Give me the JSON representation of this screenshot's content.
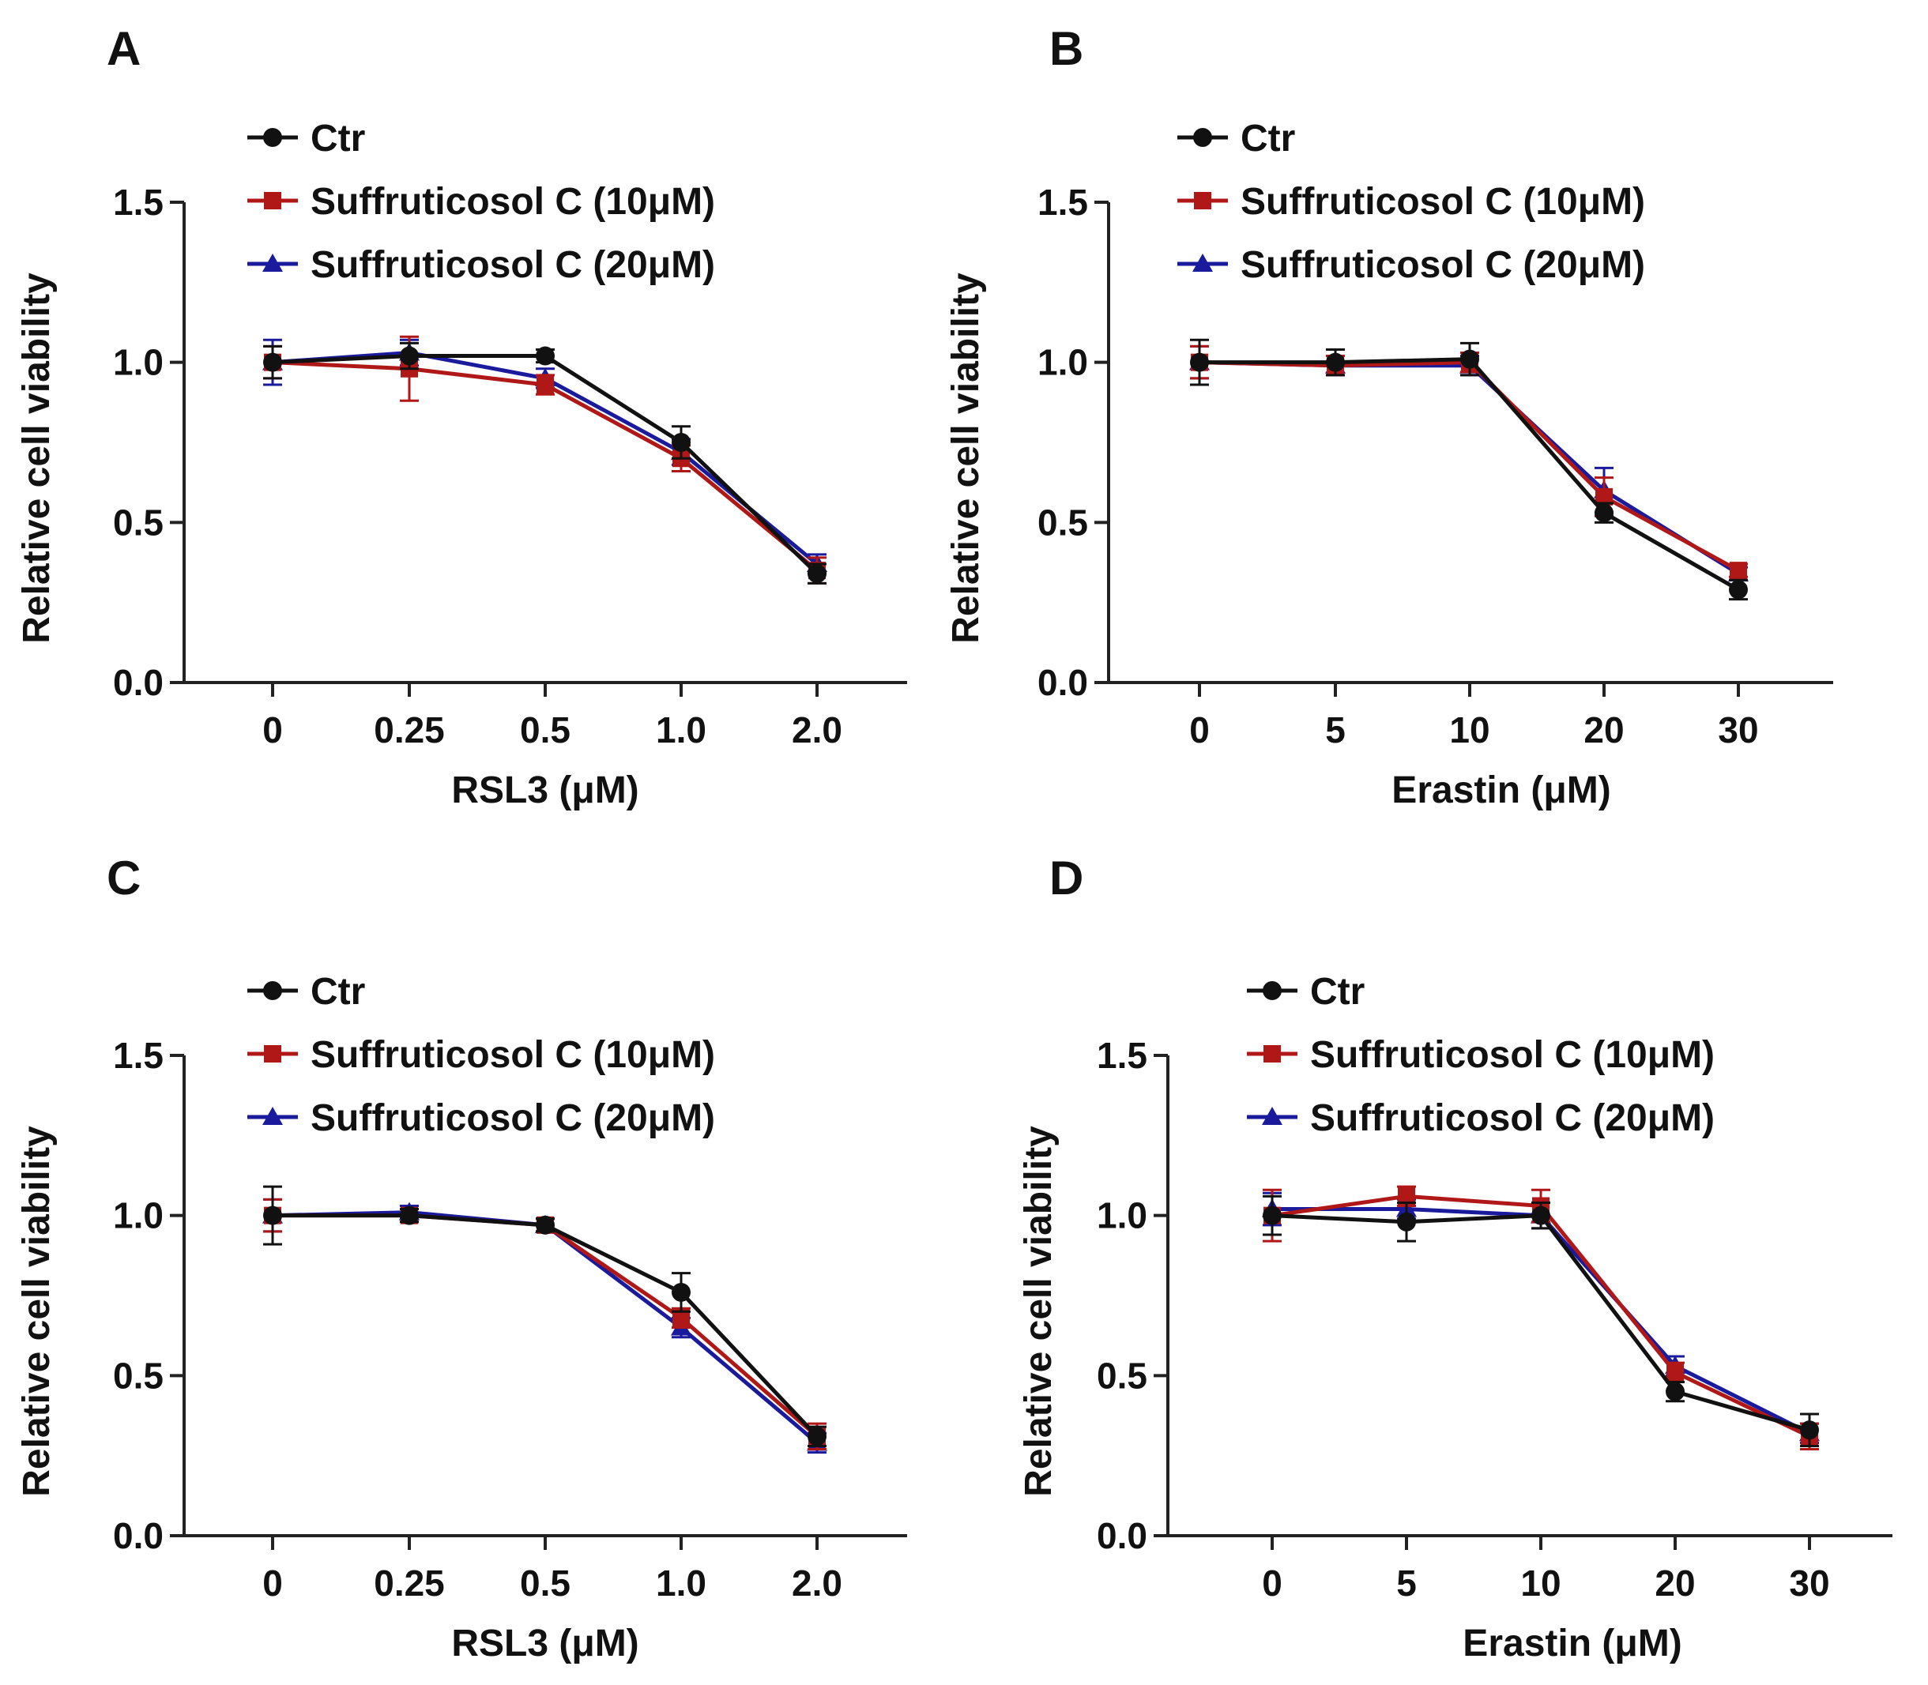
{
  "colors": {
    "ctr": "#111111",
    "s10": "#b01818",
    "s20": "#1a1a9c",
    "axis": "#222222"
  },
  "chart_data": [
    {
      "type": "line",
      "panel_label": "A",
      "title": "",
      "categories": [
        "0",
        "0.25",
        "0.5",
        "1.0",
        "2.0"
      ],
      "xlabel": "RSL3 (μM)",
      "ylabel": "Relative cell viability",
      "ylim": [
        0,
        1.5
      ],
      "yticks": [
        "0.0",
        "0.5",
        "1.0",
        "1.5"
      ],
      "legend_position": "top-left",
      "series": [
        {
          "name": "Ctr",
          "marker": "circle",
          "values": [
            1.0,
            1.02,
            1.02,
            0.75,
            0.34
          ],
          "errors": [
            0.05,
            0.04,
            0.02,
            0.05,
            0.03
          ]
        },
        {
          "name": "Suffruticosol C (10μM)",
          "marker": "square",
          "values": [
            1.0,
            0.98,
            0.93,
            0.7,
            0.35
          ],
          "errors": [
            0.05,
            0.1,
            0.03,
            0.04,
            0.04
          ]
        },
        {
          "name": "Suffruticosol C (20μM)",
          "marker": "triangle",
          "values": [
            1.0,
            1.03,
            0.95,
            0.72,
            0.37
          ],
          "errors": [
            0.07,
            0.04,
            0.03,
            0.04,
            0.03
          ]
        }
      ]
    },
    {
      "type": "line",
      "panel_label": "B",
      "title": "",
      "categories": [
        "0",
        "5",
        "10",
        "20",
        "30"
      ],
      "xlabel": "Erastin (μM)",
      "ylabel": "Relative cell viability",
      "ylim": [
        0,
        1.5
      ],
      "yticks": [
        "0.0",
        "0.5",
        "1.0",
        "1.5"
      ],
      "legend_position": "top-left",
      "series": [
        {
          "name": "Ctr",
          "marker": "circle",
          "values": [
            1.0,
            1.0,
            1.01,
            0.53,
            0.29
          ],
          "errors": [
            0.07,
            0.04,
            0.05,
            0.03,
            0.03
          ]
        },
        {
          "name": "Suffruticosol C (10μM)",
          "marker": "square",
          "values": [
            1.0,
            0.99,
            1.0,
            0.58,
            0.35
          ],
          "errors": [
            0.05,
            0.03,
            0.03,
            0.06,
            0.02
          ]
        },
        {
          "name": "Suffruticosol C (20μM)",
          "marker": "triangle",
          "values": [
            1.0,
            0.99,
            0.99,
            0.6,
            0.34
          ],
          "errors": [
            0.05,
            0.03,
            0.03,
            0.07,
            0.02
          ]
        }
      ]
    },
    {
      "type": "line",
      "panel_label": "C",
      "title": "",
      "categories": [
        "0",
        "0.25",
        "0.5",
        "1.0",
        "2.0"
      ],
      "xlabel": "RSL3 (μM)",
      "ylabel": "Relative cell viability",
      "ylim": [
        0,
        1.5
      ],
      "yticks": [
        "0.0",
        "0.5",
        "1.0",
        "1.5"
      ],
      "legend_position": "top-left",
      "series": [
        {
          "name": "Ctr",
          "marker": "circle",
          "values": [
            1.0,
            1.0,
            0.97,
            0.76,
            0.31
          ],
          "errors": [
            0.09,
            0.02,
            0.02,
            0.06,
            0.03
          ]
        },
        {
          "name": "Suffruticosol C (10μM)",
          "marker": "square",
          "values": [
            1.0,
            1.0,
            0.97,
            0.68,
            0.31
          ],
          "errors": [
            0.05,
            0.02,
            0.02,
            0.03,
            0.04
          ]
        },
        {
          "name": "Suffruticosol C (20μM)",
          "marker": "triangle",
          "values": [
            1.0,
            1.01,
            0.97,
            0.65,
            0.29
          ],
          "errors": [
            0.05,
            0.02,
            0.02,
            0.03,
            0.03
          ]
        }
      ]
    },
    {
      "type": "line",
      "panel_label": "D",
      "title": "",
      "categories": [
        "0",
        "5",
        "10",
        "20",
        "30"
      ],
      "xlabel": "Erastin (μM)",
      "ylabel": "Relative cell viability",
      "ylim": [
        0,
        1.5
      ],
      "yticks": [
        "0.0",
        "0.5",
        "1.0",
        "1.5"
      ],
      "legend_position": "top-left",
      "series": [
        {
          "name": "Ctr",
          "marker": "circle",
          "values": [
            1.0,
            0.98,
            1.0,
            0.45,
            0.33
          ],
          "errors": [
            0.06,
            0.06,
            0.04,
            0.03,
            0.05
          ]
        },
        {
          "name": "Suffruticosol C (10μM)",
          "marker": "square",
          "values": [
            1.0,
            1.06,
            1.03,
            0.51,
            0.31
          ],
          "errors": [
            0.08,
            0.03,
            0.05,
            0.03,
            0.04
          ]
        },
        {
          "name": "Suffruticosol C (20μM)",
          "marker": "triangle",
          "values": [
            1.02,
            1.02,
            1.0,
            0.53,
            0.32
          ],
          "errors": [
            0.05,
            0.03,
            0.04,
            0.03,
            0.03
          ]
        }
      ]
    }
  ]
}
